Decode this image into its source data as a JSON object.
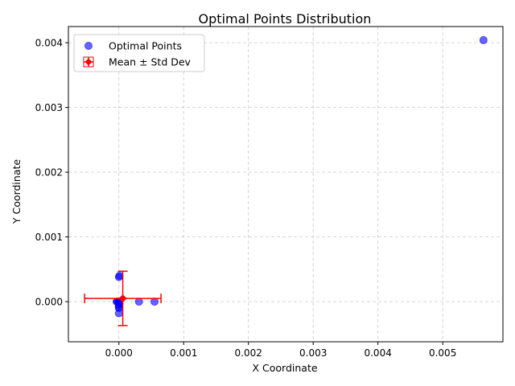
{
  "chart_data": {
    "type": "scatter",
    "title": "Optimal Points Distribution",
    "xlabel": "X Coordinate",
    "ylabel": "Y Coordinate",
    "xlim": [
      -0.00078,
      0.00593
    ],
    "ylim": [
      -0.00062,
      0.00425
    ],
    "xticks": [
      0.0,
      0.001,
      0.002,
      0.003,
      0.004,
      0.005
    ],
    "xtick_labels": [
      "0.000",
      "0.001",
      "0.002",
      "0.003",
      "0.004",
      "0.005"
    ],
    "yticks": [
      0.0,
      0.001,
      0.002,
      0.003,
      0.004
    ],
    "ytick_labels": [
      "0.000",
      "0.001",
      "0.002",
      "0.003",
      "0.004"
    ],
    "grid": true,
    "legend_position": "top-left",
    "series": [
      {
        "name": "Optimal Points",
        "kind": "scatter",
        "color": "#0000ff",
        "opacity": 0.6,
        "x": [
          0.00563,
          -3.5e-05,
          -2.5e-05,
          0.0,
          1e-05,
          0.0,
          1e-05,
          0.0,
          0.0,
          5e-06,
          0.0,
          0.00031,
          0.00055,
          0.0,
          0.0
        ],
        "y": [
          0.00404,
          0.0,
          0.0,
          0.00038,
          0.0004,
          -5e-05,
          -3e-05,
          0.0,
          -8e-05,
          -2e-05,
          -0.00018,
          0.0,
          0.0,
          0.0,
          -0.0001
        ]
      },
      {
        "name": "Mean ± Std Dev",
        "kind": "errorbar",
        "color": "#ff0000",
        "x": 6e-05,
        "y": 5e-05,
        "xerr": 0.00059,
        "yerr": 0.00042
      }
    ]
  }
}
